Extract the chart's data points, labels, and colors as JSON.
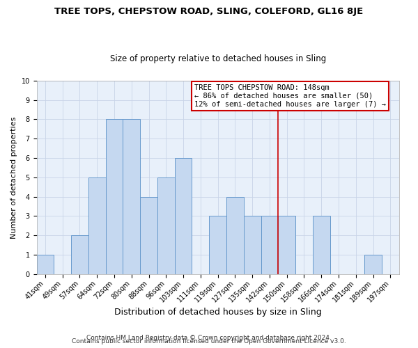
{
  "title": "TREE TOPS, CHEPSTOW ROAD, SLING, COLEFORD, GL16 8JE",
  "subtitle": "Size of property relative to detached houses in Sling",
  "xlabel": "Distribution of detached houses by size in Sling",
  "ylabel": "Number of detached properties",
  "bin_labels": [
    "41sqm",
    "49sqm",
    "57sqm",
    "64sqm",
    "72sqm",
    "80sqm",
    "88sqm",
    "96sqm",
    "103sqm",
    "111sqm",
    "119sqm",
    "127sqm",
    "135sqm",
    "142sqm",
    "150sqm",
    "158sqm",
    "166sqm",
    "174sqm",
    "181sqm",
    "189sqm",
    "197sqm"
  ],
  "bar_values": [
    1,
    0,
    2,
    5,
    8,
    8,
    4,
    5,
    6,
    0,
    3,
    4,
    3,
    3,
    3,
    0,
    3,
    0,
    0,
    1,
    0
  ],
  "bar_color": "#c5d8f0",
  "bar_edgecolor": "#6699cc",
  "vline_x": 13.5,
  "vline_color": "#cc0000",
  "annotation_title": "TREE TOPS CHEPSTOW ROAD: 148sqm",
  "annotation_line1": "← 86% of detached houses are smaller (50)",
  "annotation_line2": "12% of semi-detached houses are larger (7) →",
  "annotation_box_color": "#ffffff",
  "annotation_border_color": "#cc0000",
  "ylim": [
    0,
    10
  ],
  "yticks": [
    0,
    1,
    2,
    3,
    4,
    5,
    6,
    7,
    8,
    9,
    10
  ],
  "footer1": "Contains HM Land Registry data © Crown copyright and database right 2024.",
  "footer2": "Contains public sector information licensed under the Open Government Licence v3.0.",
  "background_color": "#ffffff",
  "plot_bg_color": "#e8f0fa",
  "grid_color": "#c8d4e8",
  "title_fontsize": 9.5,
  "subtitle_fontsize": 8.5,
  "xlabel_fontsize": 9,
  "ylabel_fontsize": 8,
  "tick_fontsize": 7,
  "annotation_fontsize": 7.5,
  "footer_fontsize": 6.5
}
